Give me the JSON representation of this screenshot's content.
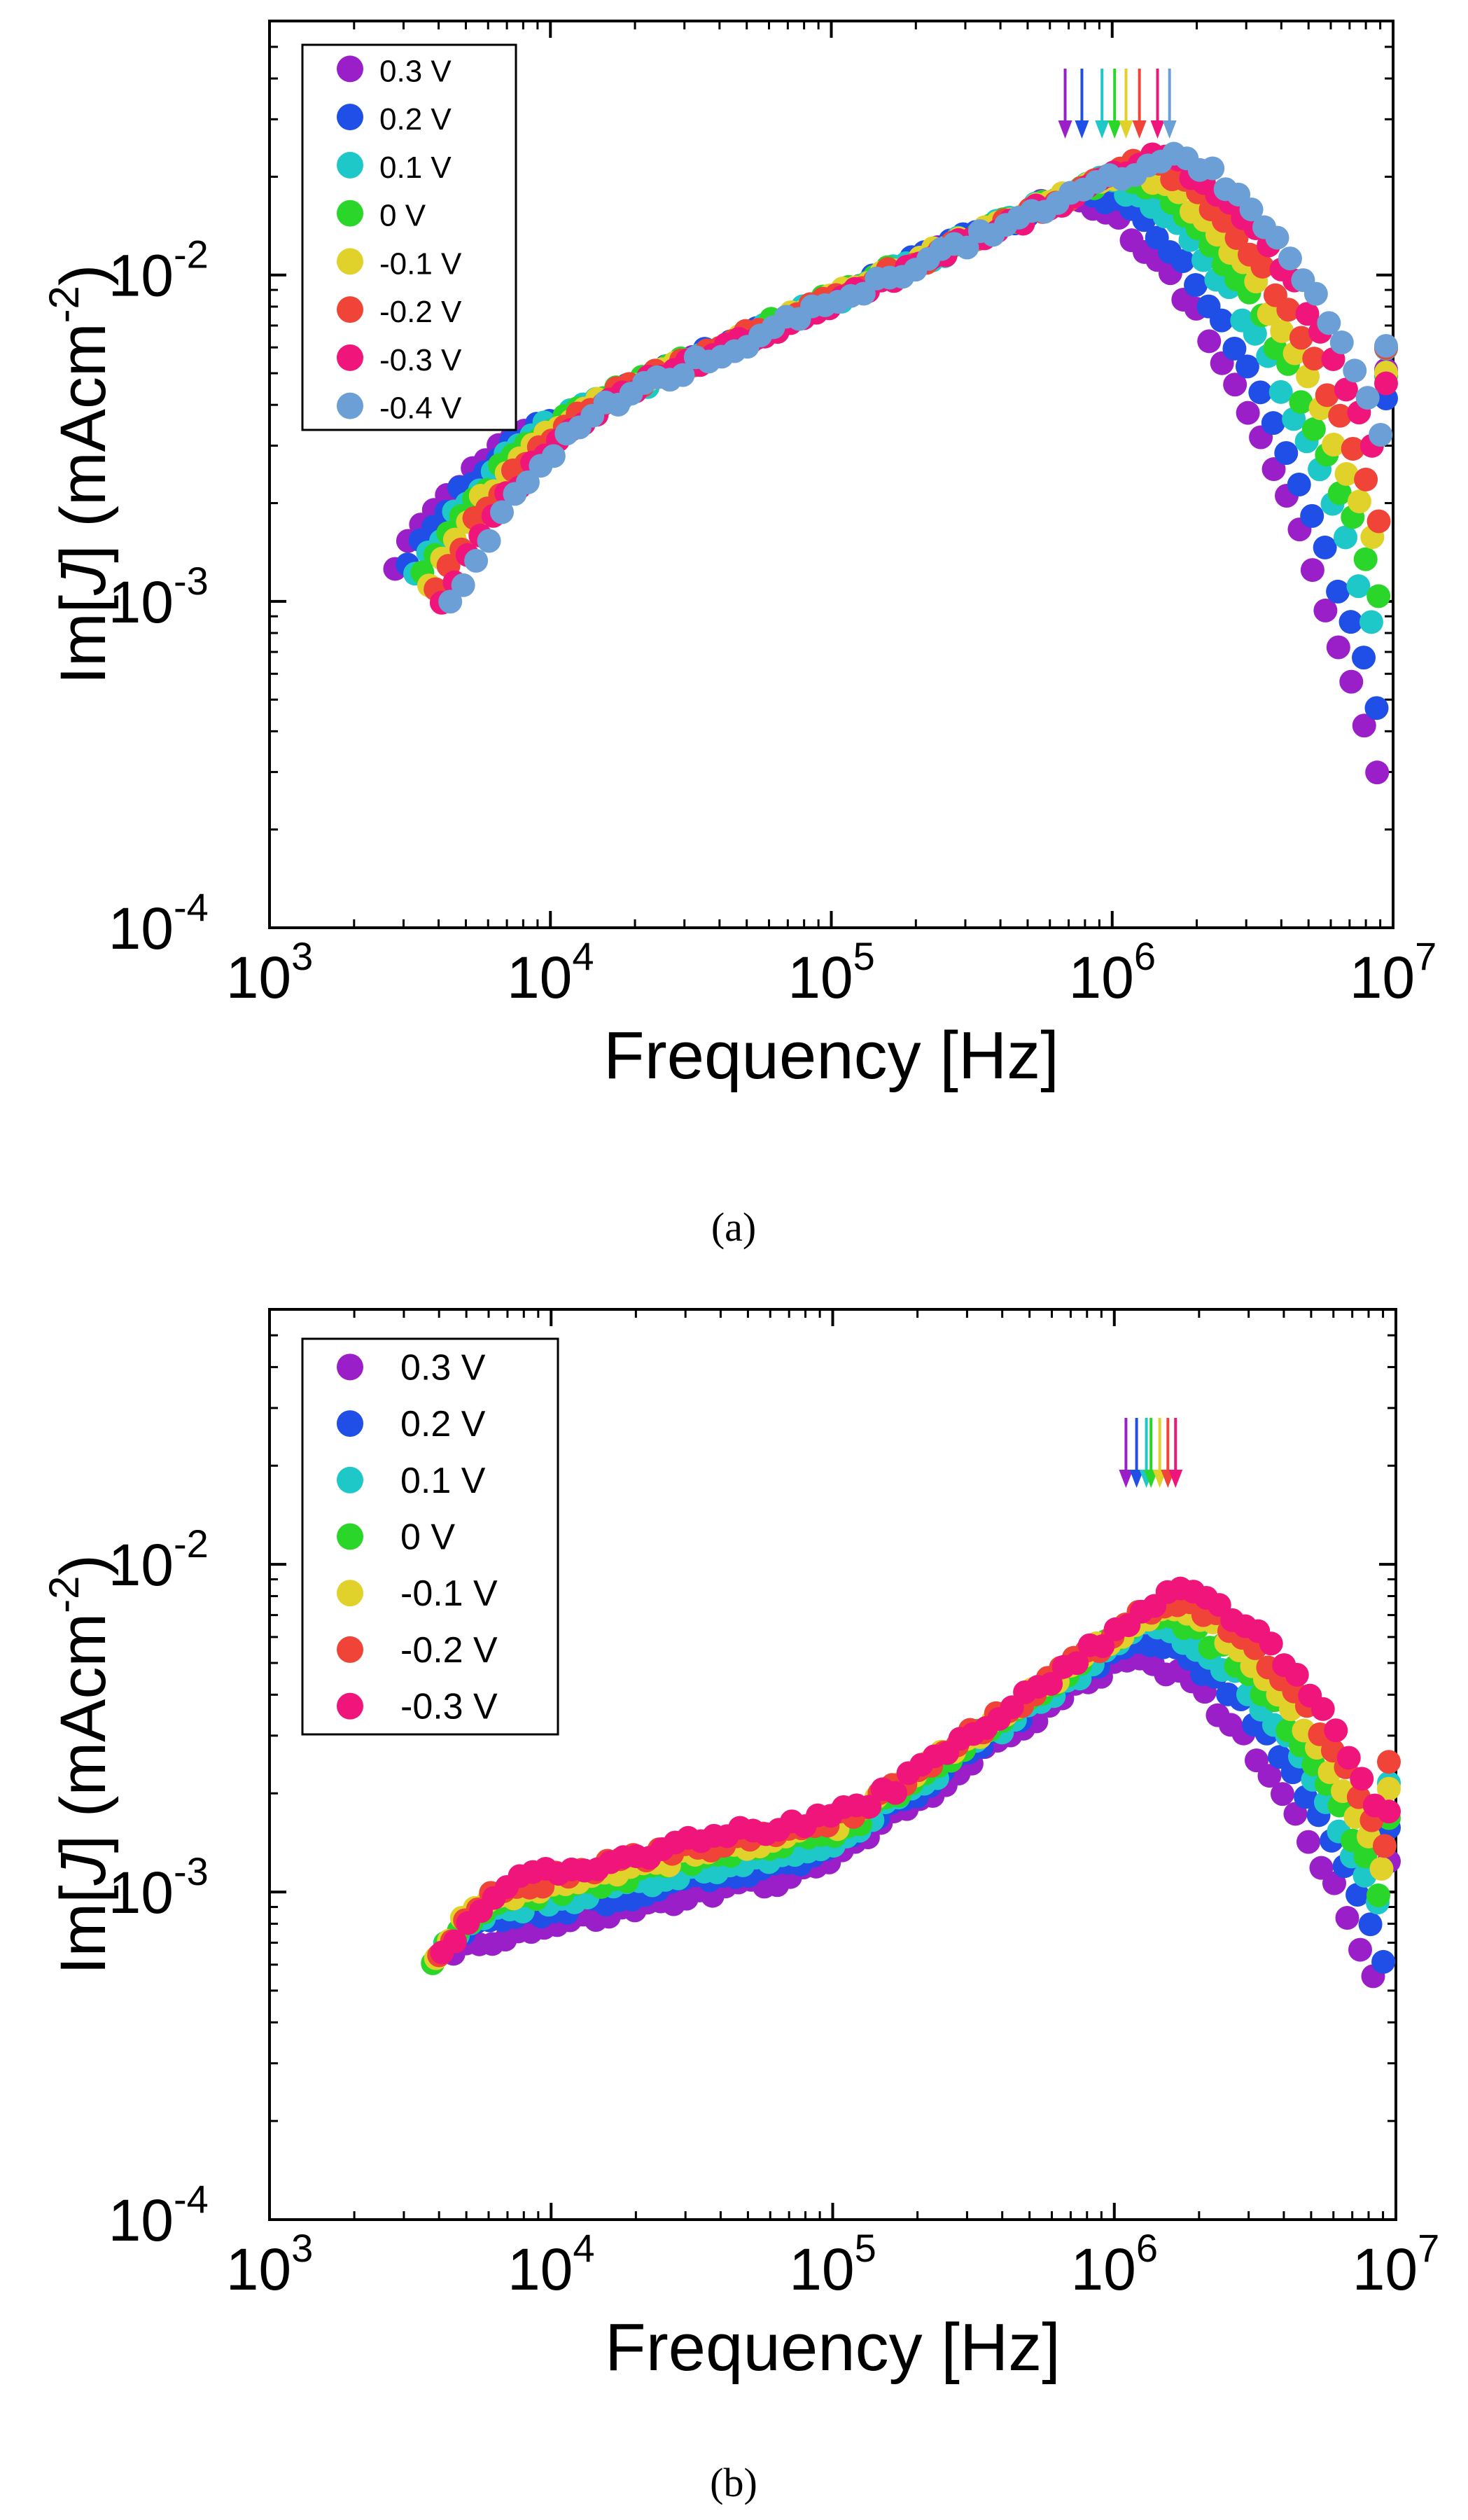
{
  "figure": {
    "captions": [
      "(a)",
      "(b)"
    ]
  },
  "chart_data": [
    {
      "panel": "a",
      "type": "scatter",
      "xscale": "log",
      "yscale": "log",
      "xlabel": "Frequency [Hz]",
      "ylabel_prefix": "Im[",
      "ylabel_var": "J",
      "ylabel_suffix": "] (mAcm",
      "ylabel_sup": "-2",
      "ylabel_end": ")",
      "xlim": [
        1000,
        10000000
      ],
      "ylim": [
        0.0001,
        0.06
      ],
      "xticks": [
        {
          "v": 1000,
          "base": "10",
          "exp": "3"
        },
        {
          "v": 10000,
          "base": "10",
          "exp": "4"
        },
        {
          "v": 100000,
          "base": "10",
          "exp": "5"
        },
        {
          "v": 1000000,
          "base": "10",
          "exp": "6"
        },
        {
          "v": 10000000,
          "base": "10",
          "exp": "7"
        }
      ],
      "yticks": [
        {
          "v": 0.0001,
          "base": "10",
          "exp": "-4"
        },
        {
          "v": 0.001,
          "base": "10",
          "exp": "-3"
        },
        {
          "v": 0.01,
          "base": "10",
          "exp": "-2"
        }
      ],
      "legend_position": "top-left",
      "grid": false,
      "series": [
        {
          "name": "0.3 V",
          "color": "#9b1fc9",
          "x_start": 2800,
          "peak_x": 680000,
          "peak_y": 0.0175,
          "marker_x": 680000
        },
        {
          "name": "0.2 V",
          "color": "#1f4fe6",
          "x_start": 3100,
          "peak_x": 780000,
          "peak_y": 0.0185,
          "marker_x": 780000
        },
        {
          "name": "0.1 V",
          "color": "#1ec8c8",
          "x_start": 3300,
          "peak_x": 920000,
          "peak_y": 0.0195,
          "marker_x": 920000
        },
        {
          "name": "0 V",
          "color": "#2bd62b",
          "x_start": 3500,
          "peak_x": 1020000,
          "peak_y": 0.0205,
          "marker_x": 1020000
        },
        {
          "name": "-0.1 V",
          "color": "#e0d22a",
          "x_start": 3700,
          "peak_x": 1120000,
          "peak_y": 0.0212,
          "marker_x": 1120000
        },
        {
          "name": "-0.2 V",
          "color": "#f04438",
          "x_start": 3900,
          "peak_x": 1250000,
          "peak_y": 0.022,
          "marker_x": 1250000
        },
        {
          "name": "-0.3 V",
          "color": "#f0157a",
          "x_start": 4100,
          "peak_x": 1450000,
          "peak_y": 0.0228,
          "marker_x": 1450000
        },
        {
          "name": "-0.4 V",
          "color": "#6b9fd6",
          "x_start": 4400,
          "peak_x": 1600000,
          "peak_y": 0.0235,
          "marker_x": 1600000
        }
      ]
    },
    {
      "panel": "b",
      "type": "scatter",
      "xscale": "log",
      "yscale": "log",
      "xlabel": "Frequency [Hz]",
      "ylabel_prefix": "Im[",
      "ylabel_var": "J",
      "ylabel_suffix": "] (mAcm",
      "ylabel_sup": "-2",
      "ylabel_end": ")",
      "xlim": [
        1000,
        10000000
      ],
      "ylim": [
        0.0001,
        0.06
      ],
      "xticks": [
        {
          "v": 1000,
          "base": "10",
          "exp": "3"
        },
        {
          "v": 10000,
          "base": "10",
          "exp": "4"
        },
        {
          "v": 100000,
          "base": "10",
          "exp": "5"
        },
        {
          "v": 1000000,
          "base": "10",
          "exp": "6"
        },
        {
          "v": 10000000,
          "base": "10",
          "exp": "7"
        }
      ],
      "yticks": [
        {
          "v": 0.0001,
          "base": "10",
          "exp": "-4"
        },
        {
          "v": 0.001,
          "base": "10",
          "exp": "-3"
        },
        {
          "v": 0.01,
          "base": "10",
          "exp": "-2"
        }
      ],
      "legend_position": "top-left",
      "grid": false,
      "series": [
        {
          "name": "0.3 V",
          "color": "#9b1fc9",
          "x_start": 4500,
          "peak_x": 1100000,
          "peak_y": 0.0053,
          "marker_x": 1100000
        },
        {
          "name": "0.2 V",
          "color": "#1f4fe6",
          "x_start": 4400,
          "peak_x": 1200000,
          "peak_y": 0.006,
          "marker_x": 1200000
        },
        {
          "name": "0.1 V",
          "color": "#1ec8c8",
          "x_start": 4200,
          "peak_x": 1300000,
          "peak_y": 0.0065,
          "marker_x": 1300000
        },
        {
          "name": "0 V",
          "color": "#2bd62b",
          "x_start": 3800,
          "peak_x": 1350000,
          "peak_y": 0.007,
          "marker_x": 1350000
        },
        {
          "name": "-0.1 V",
          "color": "#e0d22a",
          "x_start": 3900,
          "peak_x": 1450000,
          "peak_y": 0.0075,
          "marker_x": 1450000
        },
        {
          "name": "-0.2 V",
          "color": "#f04438",
          "x_start": 4000,
          "peak_x": 1550000,
          "peak_y": 0.0079,
          "marker_x": 1550000
        },
        {
          "name": "-0.3 V",
          "color": "#f0157a",
          "x_start": 4100,
          "peak_x": 1650000,
          "peak_y": 0.0083,
          "marker_x": 1650000
        }
      ]
    }
  ]
}
